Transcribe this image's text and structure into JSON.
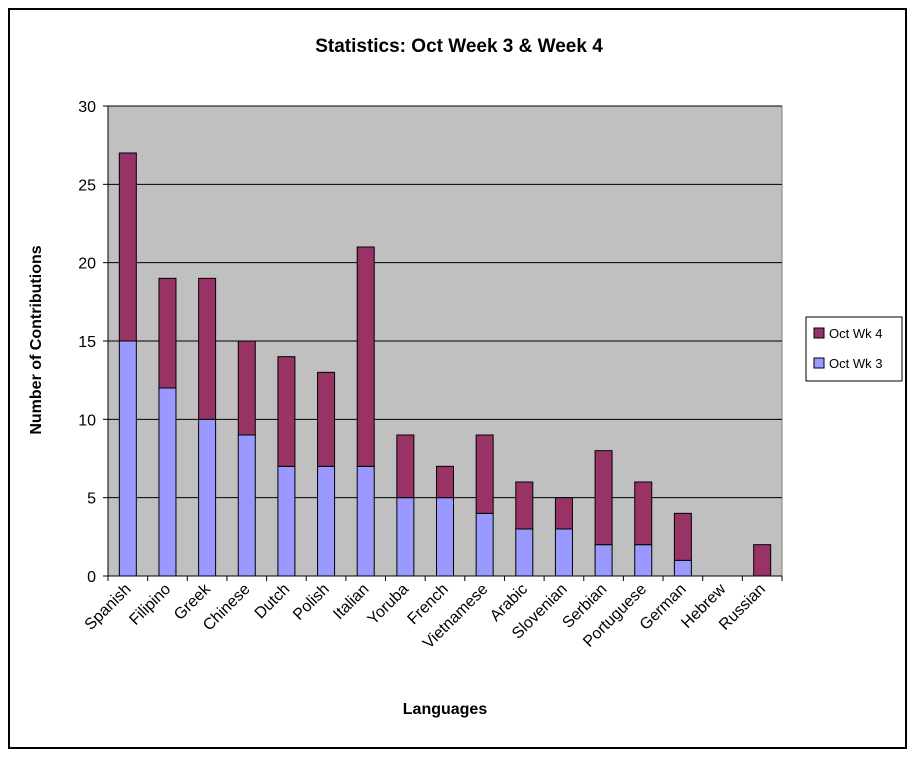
{
  "chart_data": {
    "type": "bar",
    "stacked": true,
    "title": "Statistics:  Oct Week 3 & Week 4",
    "xlabel": "Languages",
    "ylabel": "Number of Contributions",
    "ylim": [
      0,
      30
    ],
    "yticks": [
      "0",
      "5",
      "10",
      "15",
      "20",
      "25",
      "30"
    ],
    "grid": true,
    "legend_position": "right",
    "categories": [
      "Spanish",
      "Filipino",
      "Greek",
      "Chinese",
      "Dutch",
      "Polish",
      "Italian",
      "Yoruba",
      "French",
      "Vietnamese",
      "Arabic",
      "Slovenian",
      "Serbian",
      "Portuguese",
      "German",
      "Hebrew",
      "Russian"
    ],
    "series": [
      {
        "name": "Oct Wk 3",
        "color": "#9999ff",
        "values": [
          15,
          12,
          10,
          9,
          7,
          7,
          7,
          5,
          5,
          4,
          3,
          3,
          2,
          2,
          1,
          0,
          0
        ]
      },
      {
        "name": "Oct Wk 4",
        "color": "#993366",
        "values": [
          12,
          7,
          9,
          6,
          7,
          6,
          14,
          4,
          2,
          5,
          3,
          2,
          6,
          4,
          3,
          0,
          2
        ]
      }
    ],
    "legend_order": [
      "Oct Wk 4",
      "Oct Wk 3"
    ],
    "colors": {
      "plot_background": "#c0c0c0",
      "gridline": "#000000"
    }
  }
}
